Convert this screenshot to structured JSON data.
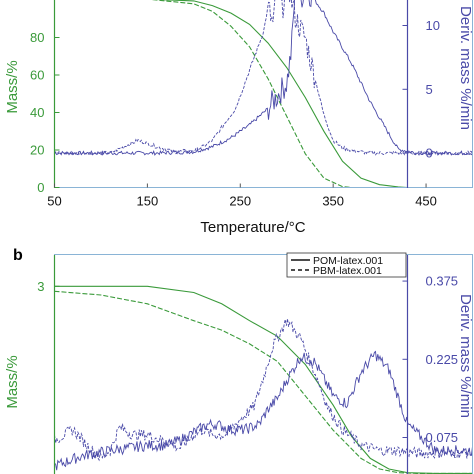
{
  "chart_data": [
    {
      "panel_letter": "",
      "type": "line",
      "title": "",
      "xlabel": "Temperature/°C",
      "ylabel_left": "Mass/%",
      "ylabel_right": "Deriv. mass %/min",
      "xlim": [
        50,
        500
      ],
      "ylim_left": [
        0,
        100
      ],
      "ylim_right": [
        -2.7,
        12
      ],
      "x_ticks": [
        50,
        150,
        250,
        350,
        450
      ],
      "y_left_ticks": [
        0,
        20,
        40,
        60,
        80
      ],
      "y_right_ticks": [
        0,
        5,
        10
      ],
      "grid": false,
      "colors": {
        "mass": "#3a9a3a",
        "deriv": "#4a4aa8",
        "frame": "#8ab4d6",
        "left_axis": "#3a9a3a",
        "right_axis": "#4a4aa8"
      },
      "series": [
        {
          "axis": "left",
          "style": "solid",
          "x": [
            50,
            150,
            200,
            220,
            240,
            260,
            280,
            300,
            320,
            340,
            360,
            380,
            400,
            420,
            430,
            440
          ],
          "y": [
            101,
            100.5,
            99.5,
            97,
            93,
            87,
            77,
            64,
            48,
            30,
            14,
            5,
            1.5,
            0.3,
            0,
            0
          ]
        },
        {
          "axis": "left",
          "style": "dashed",
          "x": [
            50,
            150,
            200,
            220,
            240,
            260,
            280,
            300,
            320,
            340,
            360,
            370
          ],
          "y": [
            101,
            100.5,
            98,
            94,
            86,
            75,
            58,
            38,
            18,
            5,
            0.5,
            0
          ]
        },
        {
          "axis": "right",
          "style": "solid",
          "x": [
            50,
            160,
            200,
            220,
            240,
            260,
            280,
            290,
            300,
            305,
            310,
            315,
            320,
            330,
            340,
            350,
            370,
            390,
            410,
            420,
            440,
            480,
            500
          ],
          "y": [
            0,
            0,
            0.1,
            0.5,
            1.2,
            2.2,
            3.5,
            4.5,
            5.5,
            8,
            14,
            12,
            13,
            12,
            11,
            9.5,
            7,
            4,
            1.5,
            0.3,
            0,
            0,
            0
          ]
        },
        {
          "axis": "right",
          "style": "dashed",
          "x": [
            50,
            110,
            125,
            140,
            160,
            180,
            200,
            210,
            220,
            230,
            245,
            260,
            275,
            280,
            285,
            290,
            295,
            300,
            305,
            310,
            320,
            330,
            340,
            350,
            360,
            370,
            380,
            390,
            500
          ],
          "y": [
            0,
            0,
            0.5,
            1.0,
            0.5,
            0.1,
            0.2,
            0.5,
            1.0,
            2.0,
            3.5,
            6.5,
            9.5,
            11.5,
            10,
            13,
            11,
            14,
            12,
            10.5,
            9,
            6,
            3,
            1,
            0.4,
            0.2,
            0.1,
            0,
            0
          ]
        }
      ]
    },
    {
      "panel_letter": "b",
      "type": "line",
      "title": "",
      "xlabel": "",
      "ylabel_left": "Mass/%",
      "ylabel_right": "Deriv. mass %/min",
      "xlim": [
        50,
        500
      ],
      "ylim_left": [
        0,
        3.5
      ],
      "ylim_right": [
        0.005,
        0.425
      ],
      "y_left_ticks": [
        3
      ],
      "y_right_ticks": [
        0.075,
        0.225,
        0.375
      ],
      "y_right_tick_labels": [
        "0.075",
        "0.225",
        "0.375"
      ],
      "grid": false,
      "legend": {
        "position": "top-right",
        "entries": [
          "POM-latex.001",
          "PBM-latex.001"
        ]
      },
      "colors": {
        "mass": "#3a9a3a",
        "deriv": "#4a4aa8",
        "frame": "#8ab4d6",
        "left_axis": "#3a9a3a",
        "right_axis": "#4a4aa8"
      },
      "series": [
        {
          "name": "POM-latex.001",
          "axis": "left",
          "style": "solid",
          "x": [
            50,
            100,
            150,
            200,
            230,
            260,
            290,
            320,
            350,
            370,
            390,
            410,
            430,
            460,
            500
          ],
          "y": [
            3.0,
            3.0,
            3.0,
            2.9,
            2.72,
            2.45,
            2.2,
            1.75,
            1.1,
            0.6,
            0.25,
            0.08,
            0.02,
            0.01,
            0.01
          ]
        },
        {
          "name": "PBM-latex.001",
          "axis": "left",
          "style": "dashed",
          "x": [
            50,
            100,
            150,
            200,
            230,
            260,
            290,
            320,
            350,
            380,
            400,
            420,
            440,
            460,
            500
          ],
          "y": [
            2.92,
            2.86,
            2.72,
            2.45,
            2.3,
            2.08,
            1.8,
            1.25,
            0.7,
            0.25,
            0.08,
            0.02,
            0.01,
            0.01,
            0.01
          ]
        },
        {
          "name": "POM-latex.001",
          "axis": "right",
          "style": "solid",
          "x": [
            50,
            80,
            110,
            130,
            150,
            170,
            185,
            200,
            215,
            225,
            240,
            255,
            270,
            280,
            290,
            300,
            315,
            330,
            350,
            365,
            380,
            395,
            410,
            430,
            460,
            500
          ],
          "y": [
            0.02,
            0.04,
            0.05,
            0.055,
            0.06,
            0.06,
            0.07,
            0.085,
            0.1,
            0.1,
            0.09,
            0.09,
            0.1,
            0.13,
            0.15,
            0.185,
            0.23,
            0.22,
            0.155,
            0.14,
            0.2,
            0.235,
            0.205,
            0.1,
            0.05,
            0.05
          ]
        },
        {
          "name": "PBM-latex.001",
          "axis": "right",
          "style": "dashed",
          "x": [
            50,
            70,
            85,
            100,
            110,
            120,
            135,
            150,
            165,
            185,
            200,
            210,
            220,
            235,
            250,
            265,
            275,
            285,
            300,
            315,
            330,
            345,
            360,
            380,
            400,
            420,
            440,
            460,
            480,
            500
          ],
          "y": [
            0.07,
            0.09,
            0.06,
            0.035,
            0.05,
            0.095,
            0.08,
            0.08,
            0.07,
            0.055,
            0.08,
            0.09,
            0.08,
            0.08,
            0.11,
            0.135,
            0.19,
            0.25,
            0.3,
            0.265,
            0.2,
            0.13,
            0.09,
            0.06,
            0.05,
            0.05,
            0.045,
            0.045,
            0.045,
            0.045
          ]
        }
      ]
    }
  ]
}
